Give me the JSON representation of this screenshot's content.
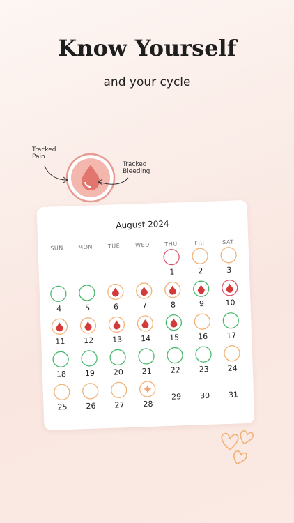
{
  "header": {
    "title": "Know Yourself",
    "subtitle": "and your cycle"
  },
  "legend": {
    "pain": "Tracked\nPain",
    "bleeding": "Tracked\nBleeding"
  },
  "calendar": {
    "month": "August 2024",
    "start_column": 4,
    "weekdays": [
      "SUN",
      "MON",
      "TUE",
      "WED",
      "THU",
      "FRI",
      "SAT"
    ],
    "days": [
      {
        "day": 1,
        "ring": "#d9556b"
      },
      {
        "day": 2,
        "ring": "#f0b27a"
      },
      {
        "day": 3,
        "ring": "#f0b27a"
      },
      {
        "day": 4,
        "ring": "#4cb86f"
      },
      {
        "day": 5,
        "ring": "#4cb86f"
      },
      {
        "day": 6,
        "ring": "#f0b27a",
        "icon": "drop"
      },
      {
        "day": 7,
        "ring": "#f0b27a",
        "icon": "drop"
      },
      {
        "day": 8,
        "ring": "#f0b27a",
        "icon": "drop"
      },
      {
        "day": 9,
        "ring": "#4cb86f",
        "icon": "drop"
      },
      {
        "day": 10,
        "ring": "#d9556b",
        "icon": "drop"
      },
      {
        "day": 11,
        "ring": "#f0b27a",
        "icon": "drop"
      },
      {
        "day": 12,
        "ring": "#f0b27a",
        "icon": "drop"
      },
      {
        "day": 13,
        "ring": "#f0b27a",
        "icon": "drop"
      },
      {
        "day": 14,
        "ring": "#f0b27a",
        "icon": "drop"
      },
      {
        "day": 15,
        "ring": "#4cb86f",
        "icon": "drop"
      },
      {
        "day": 16,
        "ring": "#f0b27a"
      },
      {
        "day": 17,
        "ring": "#4cb86f"
      },
      {
        "day": 18,
        "ring": "#4cb86f"
      },
      {
        "day": 19,
        "ring": "#4cb86f"
      },
      {
        "day": 20,
        "ring": "#4cb86f"
      },
      {
        "day": 21,
        "ring": "#4cb86f"
      },
      {
        "day": 22,
        "ring": "#4cb86f"
      },
      {
        "day": 23,
        "ring": "#4cb86f"
      },
      {
        "day": 24,
        "ring": "#f0b27a"
      },
      {
        "day": 25,
        "ring": "#f0b27a"
      },
      {
        "day": 26,
        "ring": "#f0b27a"
      },
      {
        "day": 27,
        "ring": "#f0b27a"
      },
      {
        "day": 28,
        "ring": "#f0b27a",
        "icon": "spark"
      },
      {
        "day": 29
      },
      {
        "day": 30
      },
      {
        "day": 31
      }
    ]
  }
}
